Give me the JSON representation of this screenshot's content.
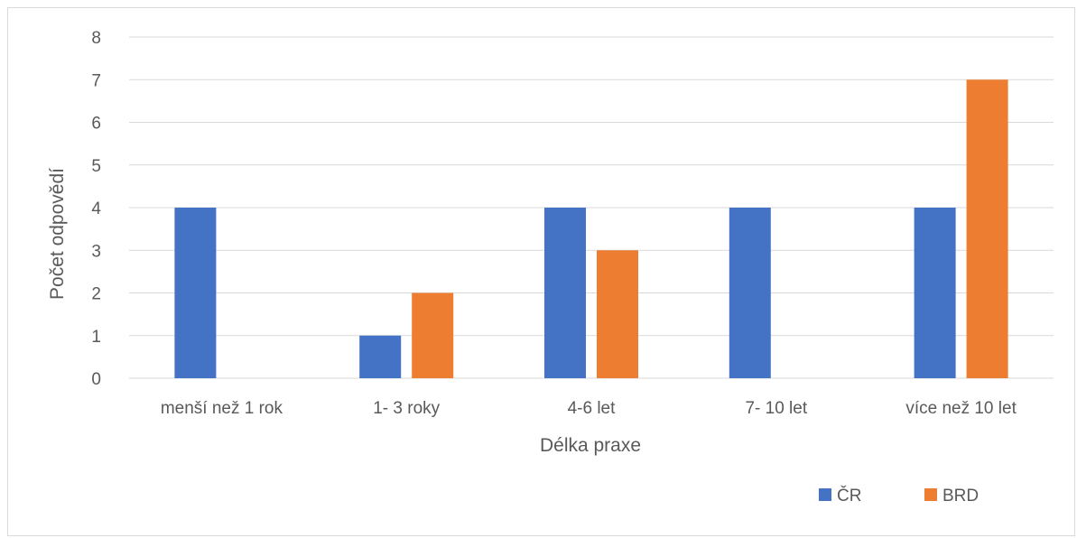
{
  "chart_data": {
    "type": "bar",
    "title": "",
    "xlabel": "Délka praxe",
    "ylabel": "Počet odpovědí",
    "categories": [
      "menší než 1 rok",
      "1- 3 roky",
      "4-6 let",
      "7- 10 let",
      "více než 10 let"
    ],
    "series": [
      {
        "name": "ČR",
        "color": "#4472c4",
        "values": [
          4,
          1,
          4,
          4,
          4
        ]
      },
      {
        "name": "BRD",
        "color": "#ed7d31",
        "values": [
          0,
          2,
          3,
          0,
          7
        ]
      }
    ],
    "ylim": [
      0,
      8
    ],
    "yticks": [
      "0",
      "1",
      "2",
      "3",
      "4",
      "5",
      "6",
      "7",
      "8"
    ],
    "grid": true,
    "legend_position": "bottom-right"
  }
}
